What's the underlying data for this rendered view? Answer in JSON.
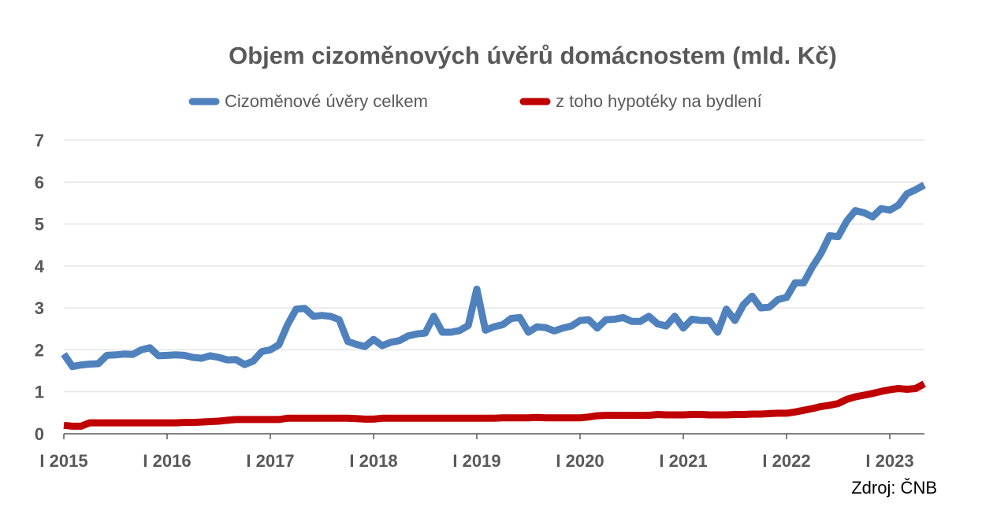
{
  "chart_data": {
    "type": "line",
    "title": "Objem cizoměnových úvěrů domácnostem (mld. Kč)",
    "xlabel": "",
    "ylabel": "",
    "ylim": [
      0,
      7
    ],
    "yticks": [
      "0",
      "1",
      "2",
      "3",
      "4",
      "5",
      "6",
      "7"
    ],
    "xticks": [
      "I 2015",
      "I 2016",
      "I 2017",
      "I 2018",
      "I 2019",
      "I 2020",
      "I 2021",
      "I 2022",
      "I 2023"
    ],
    "grid": true,
    "legend": "top",
    "x_start": "I 2015",
    "series": [
      {
        "name": "Cizoměnové úvěry celkem",
        "color": "#4F81BD",
        "values": [
          1.9,
          1.6,
          1.64,
          1.66,
          1.67,
          1.87,
          1.88,
          1.9,
          1.89,
          2.0,
          2.05,
          1.86,
          1.87,
          1.88,
          1.87,
          1.82,
          1.8,
          1.86,
          1.82,
          1.76,
          1.77,
          1.65,
          1.73,
          1.96,
          2.0,
          2.12,
          2.6,
          2.97,
          2.99,
          2.8,
          2.82,
          2.8,
          2.72,
          2.2,
          2.13,
          2.08,
          2.25,
          2.1,
          2.18,
          2.22,
          2.33,
          2.38,
          2.4,
          2.8,
          2.42,
          2.42,
          2.46,
          2.58,
          3.45,
          2.47,
          2.55,
          2.6,
          2.75,
          2.77,
          2.42,
          2.55,
          2.53,
          2.45,
          2.52,
          2.57,
          2.7,
          2.72,
          2.52,
          2.72,
          2.73,
          2.77,
          2.68,
          2.68,
          2.8,
          2.62,
          2.57,
          2.8,
          2.52,
          2.73,
          2.7,
          2.7,
          2.42,
          2.97,
          2.7,
          3.08,
          3.28,
          3.0,
          3.02,
          3.2,
          3.25,
          3.6,
          3.6,
          3.98,
          4.3,
          4.72,
          4.7,
          5.07,
          5.32,
          5.27,
          5.17,
          5.37,
          5.33,
          5.45,
          5.72,
          5.82,
          5.93
        ]
      },
      {
        "name": "z toho hypotéky na bydlení",
        "color": "#C00000",
        "values": [
          0.2,
          0.18,
          0.18,
          0.26,
          0.26,
          0.26,
          0.26,
          0.26,
          0.26,
          0.26,
          0.26,
          0.26,
          0.26,
          0.26,
          0.27,
          0.27,
          0.28,
          0.29,
          0.3,
          0.32,
          0.34,
          0.34,
          0.34,
          0.34,
          0.34,
          0.34,
          0.37,
          0.37,
          0.37,
          0.37,
          0.37,
          0.37,
          0.37,
          0.37,
          0.36,
          0.35,
          0.35,
          0.37,
          0.37,
          0.37,
          0.37,
          0.37,
          0.37,
          0.37,
          0.37,
          0.37,
          0.37,
          0.37,
          0.37,
          0.37,
          0.37,
          0.38,
          0.38,
          0.38,
          0.38,
          0.39,
          0.38,
          0.38,
          0.38,
          0.38,
          0.38,
          0.4,
          0.43,
          0.44,
          0.44,
          0.44,
          0.44,
          0.44,
          0.44,
          0.46,
          0.45,
          0.45,
          0.45,
          0.46,
          0.46,
          0.45,
          0.45,
          0.45,
          0.46,
          0.46,
          0.47,
          0.47,
          0.48,
          0.49,
          0.49,
          0.52,
          0.56,
          0.6,
          0.65,
          0.68,
          0.72,
          0.82,
          0.88,
          0.92,
          0.96,
          1.01,
          1.05,
          1.08,
          1.06,
          1.08,
          1.19
        ]
      }
    ]
  },
  "source": "Zdroj: ČNB"
}
